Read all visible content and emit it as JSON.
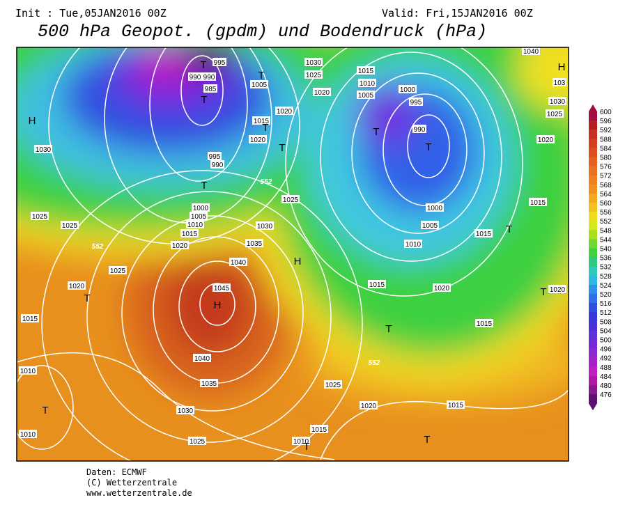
{
  "header": {
    "init": "Init : Tue,05JAN2016 00Z",
    "valid": "Valid: Fri,15JAN2016 00Z",
    "title": "500 hPa Geopot. (gpdm) und Bodendruck (hPa)"
  },
  "map": {
    "isobar_labels": [
      995,
      990,
      990,
      985,
      1005,
      1020,
      1015,
      1020,
      995,
      990,
      1000,
      1005,
      1010,
      1015,
      1020,
      1030,
      1035,
      1040,
      1045,
      1040,
      1035,
      1030,
      1025,
      1025,
      1025,
      1020,
      1015,
      1010,
      1010,
      1030,
      1025,
      1025,
      1030,
      1025,
      1020,
      1015,
      1010,
      1005,
      1000,
      995,
      990,
      1000,
      1005,
      1010,
      1015,
      1015,
      1020,
      1015,
      1020,
      1020,
      1025,
      1030,
      103,
      1040,
      1015,
      1025,
      1020,
      1015,
      1015,
      1010
    ],
    "contour_552_labels": [
      552,
      552,
      552
    ],
    "pressure_centers": [
      "H",
      "T",
      "T",
      "T",
      "T",
      "T",
      "T",
      "T",
      "T",
      "H",
      "T",
      "H",
      "H",
      "T",
      "T",
      "T",
      "T",
      "T",
      "T"
    ]
  },
  "colorbar": {
    "labels": [
      600,
      596,
      592,
      588,
      584,
      580,
      576,
      572,
      568,
      564,
      560,
      556,
      552,
      548,
      544,
      540,
      536,
      532,
      528,
      524,
      520,
      516,
      512,
      508,
      504,
      500,
      496,
      492,
      488,
      484,
      480,
      476
    ],
    "colors": [
      "#a01040",
      "#b82020",
      "#c83020",
      "#d44020",
      "#dc5020",
      "#e46020",
      "#e87020",
      "#ec8020",
      "#f09020",
      "#f4a820",
      "#f4c020",
      "#f0dc20",
      "#d8e820",
      "#a8e020",
      "#70d830",
      "#40d040",
      "#30c880",
      "#30c8b8",
      "#30b8e0",
      "#3090e8",
      "#3070e8",
      "#3050e0",
      "#3838d8",
      "#4830d8",
      "#6030d8",
      "#7828d8",
      "#9028d0",
      "#a820c8",
      "#c020c0",
      "#b018a8",
      "#881890",
      "#601070"
    ]
  },
  "footer": [
    "Daten: ECMWF",
    "(C) Wetterzentrale",
    "www.wetterzentrale.de"
  ]
}
